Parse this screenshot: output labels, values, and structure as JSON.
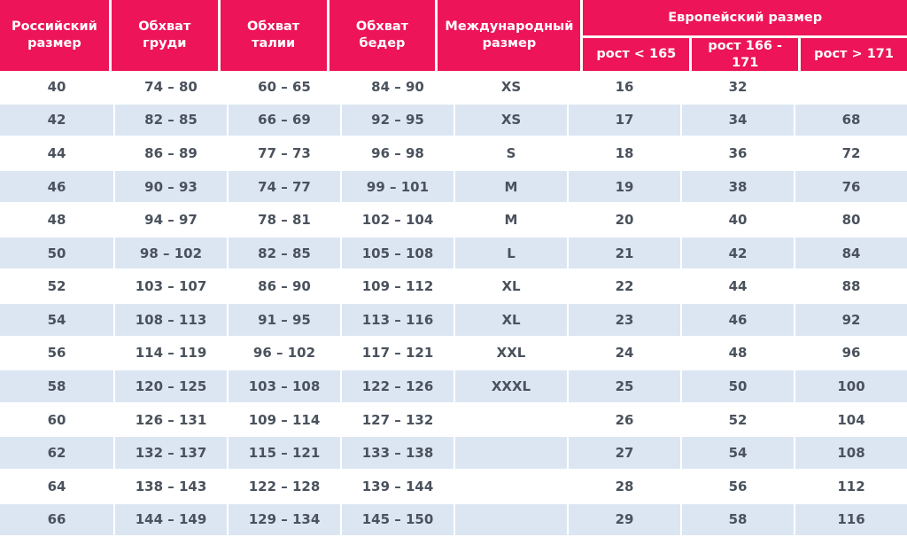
{
  "colors": {
    "header_bg": "#ED1459",
    "header_text": "#FFFFFF",
    "row_alt_bg": "#DCE6F3",
    "row_bg": "#FFFFFF",
    "cell_text": "#4A525D",
    "divider": "#FFFFFF"
  },
  "table": {
    "columns": [
      {
        "key": "russian_size",
        "label": "Российский размер"
      },
      {
        "key": "chest",
        "label": "Обхват груди"
      },
      {
        "key": "waist",
        "label": "Обхват талии"
      },
      {
        "key": "hips",
        "label": "Обхват бедер"
      },
      {
        "key": "international_size",
        "label": "Международный размер"
      }
    ],
    "euro_group": {
      "label": "Европейский размер",
      "subcolumns": [
        "рост < 165",
        "рост 166 - 171",
        "рост > 171"
      ]
    },
    "rows": [
      [
        "40",
        "74 – 80",
        "60 – 65",
        "84 – 90",
        "XS",
        "16",
        "32",
        ""
      ],
      [
        "42",
        "82 – 85",
        "66 – 69",
        "92 – 95",
        "XS",
        "17",
        "34",
        "68"
      ],
      [
        "44",
        "86 – 89",
        "77 – 73",
        "96 – 98",
        "S",
        "18",
        "36",
        "72"
      ],
      [
        "46",
        "90 – 93",
        "74 – 77",
        "99 – 101",
        "M",
        "19",
        "38",
        "76"
      ],
      [
        "48",
        "94 – 97",
        "78 – 81",
        "102 – 104",
        "M",
        "20",
        "40",
        "80"
      ],
      [
        "50",
        "98 – 102",
        "82 – 85",
        "105 – 108",
        "L",
        "21",
        "42",
        "84"
      ],
      [
        "52",
        "103 – 107",
        "86 – 90",
        "109 – 112",
        "XL",
        "22",
        "44",
        "88"
      ],
      [
        "54",
        "108 – 113",
        "91 – 95",
        "113 – 116",
        "XL",
        "23",
        "46",
        "92"
      ],
      [
        "56",
        "114 – 119",
        "96 – 102",
        "117 – 121",
        "XXL",
        "24",
        "48",
        "96"
      ],
      [
        "58",
        "120 – 125",
        "103 – 108",
        "122 – 126",
        "XXXL",
        "25",
        "50",
        "100"
      ],
      [
        "60",
        "126 – 131",
        "109 – 114",
        "127 – 132",
        "",
        "26",
        "52",
        "104"
      ],
      [
        "62",
        "132 – 137",
        "115 – 121",
        "133 – 138",
        "",
        "27",
        "54",
        "108"
      ],
      [
        "64",
        "138 – 143",
        "122 – 128",
        "139 – 144",
        "",
        "28",
        "56",
        "112"
      ],
      [
        "66",
        "144 – 149",
        "129 – 134",
        "145 – 150",
        "",
        "29",
        "58",
        "116"
      ]
    ]
  }
}
